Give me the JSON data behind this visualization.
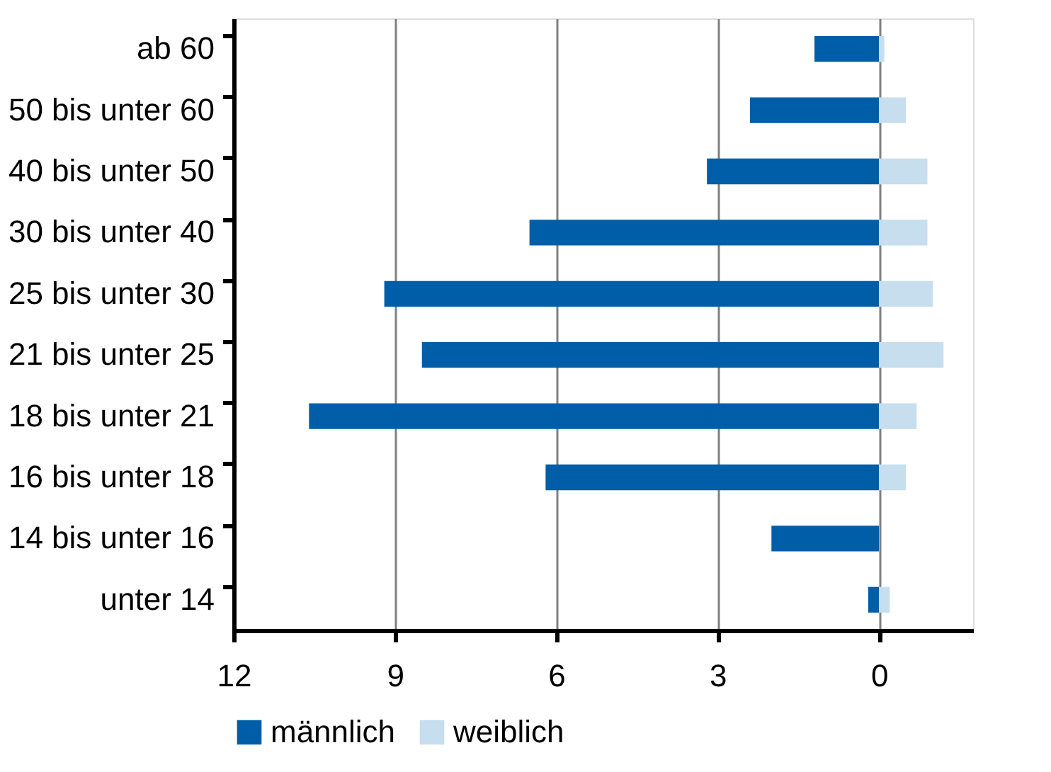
{
  "chart_data": {
    "type": "bar",
    "orientation": "horizontal",
    "stacked": true,
    "categories": [
      "ab 60",
      "50 bis unter 60",
      "40 bis unter 50",
      "30 bis unter 40",
      "25 bis unter 30",
      "21 bis unter 25",
      "18 bis unter 21",
      "16 bis unter 18",
      "14 bis unter 16",
      "unter 14"
    ],
    "series": [
      {
        "name": "männlich",
        "color": "#005ea8",
        "values": [
          1.2,
          2.4,
          3.2,
          6.5,
          9.2,
          8.5,
          10.6,
          6.2,
          2.0,
          0.2
        ]
      },
      {
        "name": "weiblich",
        "color": "#c6deed",
        "values": [
          -0.1,
          -0.5,
          -0.9,
          -0.9,
          -1.0,
          -1.2,
          -0.7,
          -0.5,
          0,
          -0.2
        ]
      }
    ],
    "xlim": [
      12,
      -1.75
    ],
    "xticks": [
      12,
      9,
      6,
      3,
      0
    ],
    "grid": "x",
    "legend": "bottom"
  }
}
